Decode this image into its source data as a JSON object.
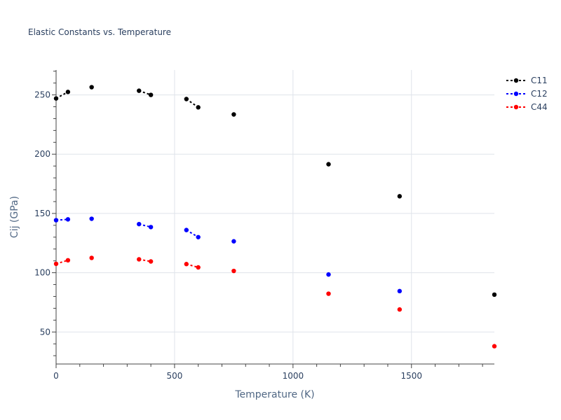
{
  "chart_data": {
    "type": "scatter",
    "title": "Elastic Constants vs. Temperature",
    "xlabel": "Temperature (K)",
    "ylabel": "Cij (GPa)",
    "xlim": [
      0,
      1850
    ],
    "ylim": [
      23,
      271
    ],
    "x_ticks": [
      0,
      500,
      1000,
      1500
    ],
    "y_ticks": [
      50,
      100,
      150,
      200,
      250
    ],
    "grid": true,
    "legend_position": "top-right",
    "series": [
      {
        "name": "C11",
        "color": "#000000",
        "points": [
          {
            "x": 0,
            "y": 247
          },
          {
            "x": 50,
            "y": 252.5
          },
          {
            "x": 150,
            "y": 256.5
          },
          {
            "x": 350,
            "y": 253.5
          },
          {
            "x": 400,
            "y": 250
          },
          {
            "x": 550,
            "y": 246.5
          },
          {
            "x": 600,
            "y": 239.5
          },
          {
            "x": 750,
            "y": 233.5
          },
          {
            "x": 1150,
            "y": 191.5
          },
          {
            "x": 1450,
            "y": 164.5
          },
          {
            "x": 1850,
            "y": 81.5
          }
        ],
        "segments": [
          [
            0,
            1
          ],
          [
            3,
            4
          ],
          [
            5,
            6
          ]
        ]
      },
      {
        "name": "C12",
        "color": "#0000ff",
        "points": [
          {
            "x": 0,
            "y": 144.3
          },
          {
            "x": 50,
            "y": 145
          },
          {
            "x": 150,
            "y": 145.5
          },
          {
            "x": 350,
            "y": 141
          },
          {
            "x": 400,
            "y": 138.5
          },
          {
            "x": 550,
            "y": 136
          },
          {
            "x": 600,
            "y": 130
          },
          {
            "x": 750,
            "y": 126.5
          },
          {
            "x": 1150,
            "y": 98.5
          },
          {
            "x": 1450,
            "y": 84.5
          }
        ],
        "segments": [
          [
            0,
            1
          ],
          [
            3,
            4
          ],
          [
            5,
            6
          ]
        ]
      },
      {
        "name": "C44",
        "color": "#ff0000",
        "points": [
          {
            "x": 0,
            "y": 107.5
          },
          {
            "x": 50,
            "y": 110.5
          },
          {
            "x": 150,
            "y": 112.5
          },
          {
            "x": 350,
            "y": 111.3
          },
          {
            "x": 400,
            "y": 109.5
          },
          {
            "x": 550,
            "y": 107.3
          },
          {
            "x": 600,
            "y": 104.5
          },
          {
            "x": 750,
            "y": 101.5
          },
          {
            "x": 1150,
            "y": 82.3
          },
          {
            "x": 1450,
            "y": 69
          },
          {
            "x": 1850,
            "y": 38
          }
        ],
        "segments": [
          [
            0,
            1
          ],
          [
            3,
            4
          ],
          [
            5,
            6
          ]
        ]
      }
    ]
  }
}
